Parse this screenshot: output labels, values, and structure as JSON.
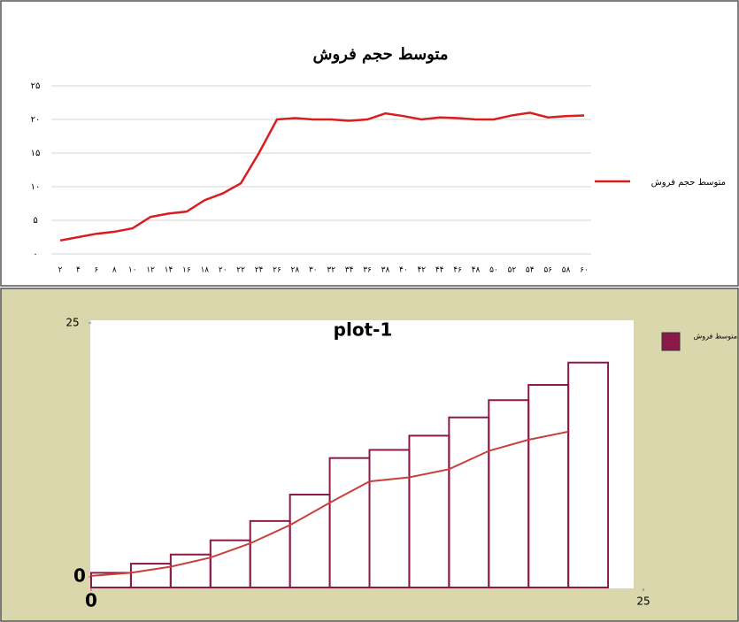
{
  "chart_data": [
    {
      "type": "line",
      "title": "متوسط حجم فروش",
      "categories": [
        "۲",
        "۴",
        "۶",
        "۸",
        "۱۰",
        "۱۲",
        "۱۴",
        "۱۶",
        "۱۸",
        "۲۰",
        "۲۲",
        "۲۴",
        "۲۶",
        "۲۸",
        "۳۰",
        "۳۲",
        "۳۴",
        "۳۶",
        "۳۸",
        "۴۰",
        "۴۲",
        "۴۴",
        "۴۶",
        "۴۸",
        "۵۰",
        "۵۲",
        "۵۴",
        "۵۶",
        "۵۸",
        "۶۰"
      ],
      "series": [
        {
          "name": "متوسط حجم فروش",
          "color": "#d81e1e",
          "values": [
            2,
            2.5,
            3,
            3.3,
            3.8,
            5.5,
            6,
            6.3,
            8,
            9,
            10.5,
            15,
            20,
            20.2,
            20,
            20,
            19.8,
            20,
            20.9,
            20.5,
            20,
            20.3,
            20.2,
            20,
            20,
            20.6,
            21,
            20.3,
            20.5,
            20.6
          ]
        }
      ],
      "ylim": [
        0,
        25
      ],
      "yticks": [
        {
          "value": 0,
          "label": "۰"
        },
        {
          "value": 5,
          "label": "۵"
        },
        {
          "value": 10,
          "label": "۱۰"
        },
        {
          "value": 15,
          "label": "۱۵"
        },
        {
          "value": 20,
          "label": "۲۰"
        },
        {
          "value": 25,
          "label": "۲۵"
        }
      ],
      "grid": true,
      "legend": "right"
    },
    {
      "type": "histogram",
      "title": "plot-1",
      "bins": [
        0,
        1.8,
        3.6,
        5.4,
        7.2,
        9,
        10.8,
        12.6,
        14.4,
        16.2,
        18,
        19.8,
        21.6,
        23.4
      ],
      "series": [
        {
          "name": "متوسط فروش",
          "color": "#8b1a4a",
          "values": [
            0.4,
            1.3,
            2.2,
            3.6,
            5.5,
            8.1,
            11.7,
            12.5,
            13.9,
            15.7,
            17.4,
            18.9,
            21.1
          ]
        }
      ],
      "line": {
        "color": "#c8403c",
        "x": [
          0,
          1.8,
          3.6,
          5.4,
          7.2,
          9,
          10.8,
          12.6,
          14.4,
          16.2,
          18,
          19.8,
          21.6
        ],
        "values": [
          0.1,
          0.4,
          1,
          1.9,
          3.3,
          5.1,
          7.3,
          9.4,
          9.8,
          10.6,
          12.4,
          13.5,
          14.3
        ]
      },
      "xlim": [
        0,
        25
      ],
      "xticks": [
        0,
        25
      ],
      "ylim": [
        -0.8,
        25
      ],
      "yticks": [
        0,
        25
      ],
      "grid": false,
      "legend": "top-right"
    }
  ]
}
